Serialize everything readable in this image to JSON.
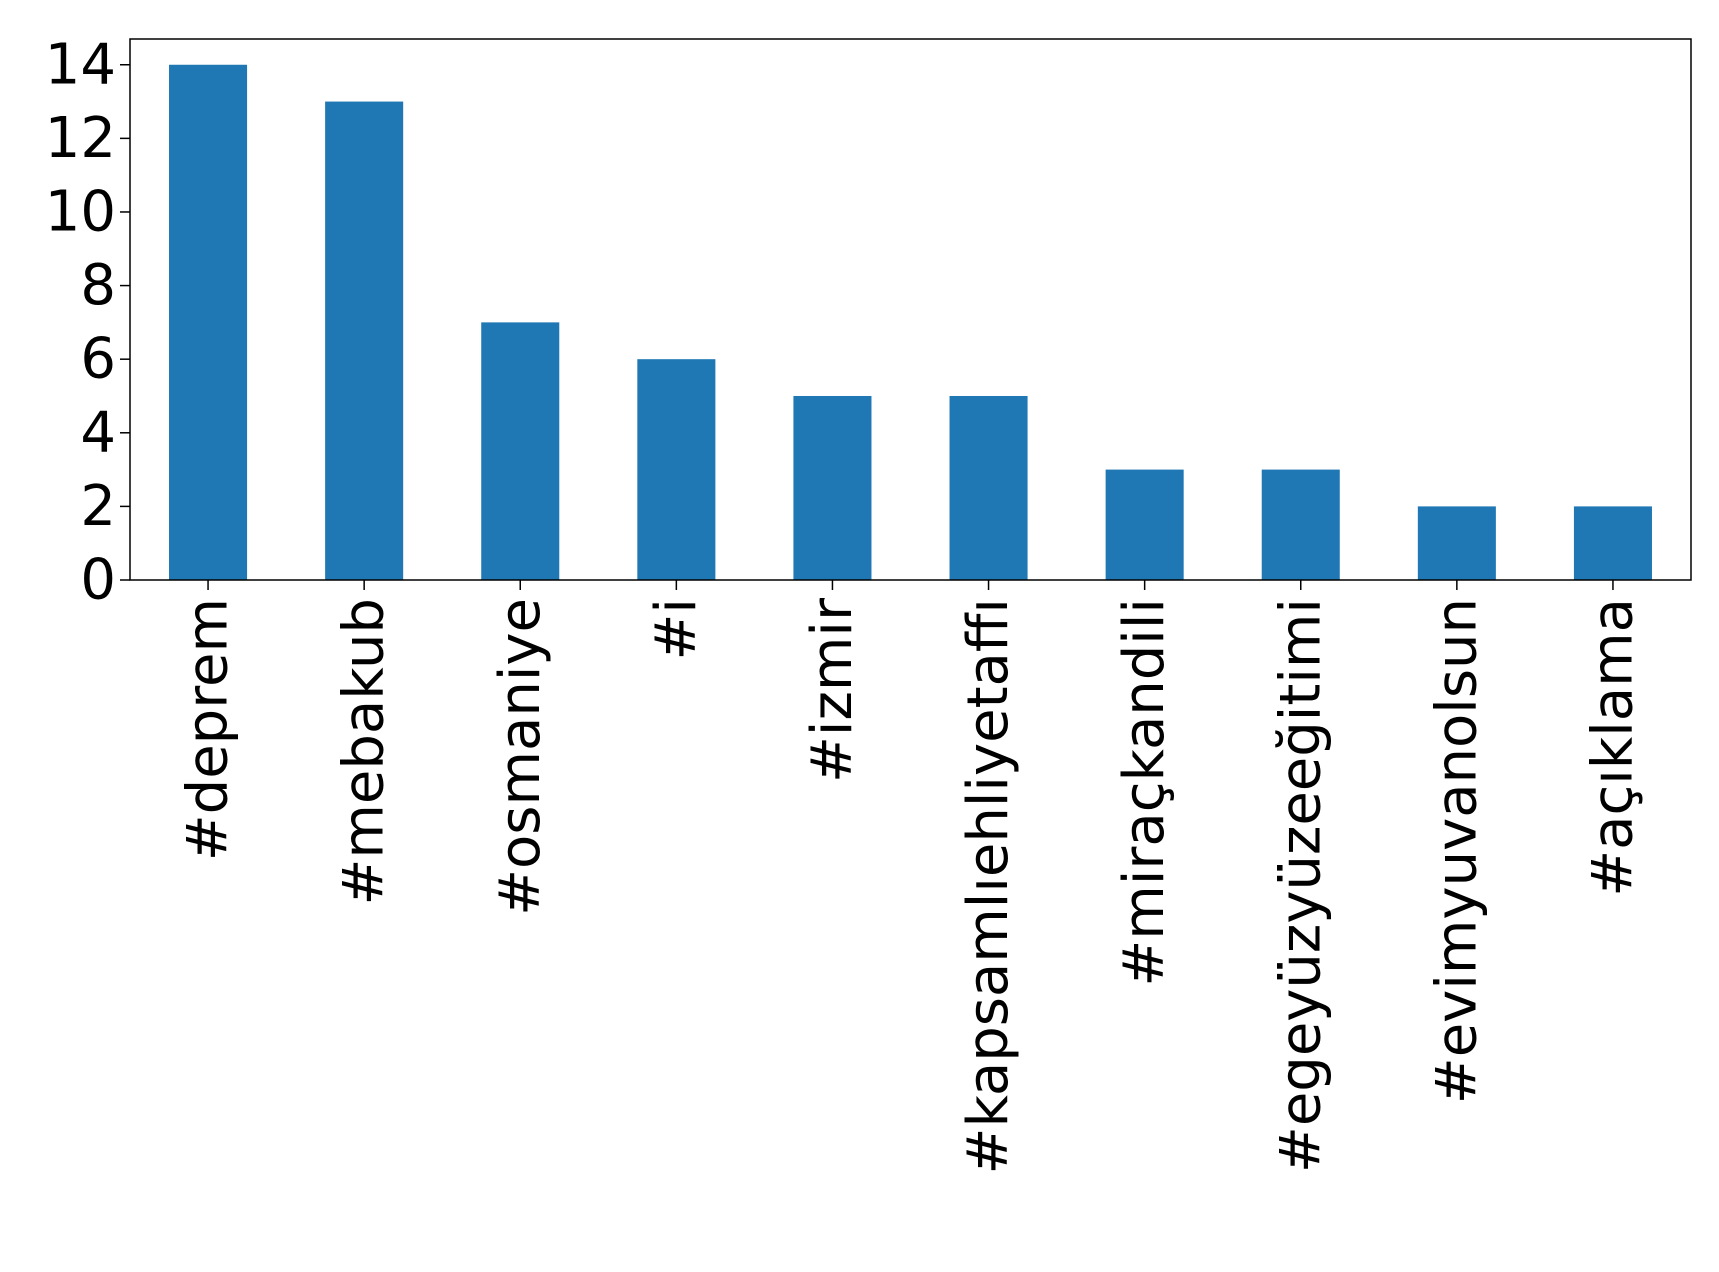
{
  "chart_data": {
    "type": "bar",
    "title": "",
    "xlabel": "",
    "ylabel": "",
    "categories": [
      "#deprem",
      "#mebakub",
      "#osmaniye",
      "#i",
      "#izmir",
      "#kapsamlıehliyetaffı",
      "#miraçkandili",
      "#egeyüzyüzeeğitimi",
      "#evimyuvanolsun",
      "#açıklama"
    ],
    "values": [
      14,
      13,
      7,
      6,
      5,
      5,
      3,
      3,
      2,
      2
    ],
    "ylim": [
      0,
      14.7
    ],
    "yticks": [
      "0",
      "2",
      "4",
      "6",
      "8",
      "10",
      "12",
      "14"
    ],
    "grid": false,
    "legend": "none",
    "bar_color": "#1f77b4",
    "axis_color": "#000000"
  }
}
